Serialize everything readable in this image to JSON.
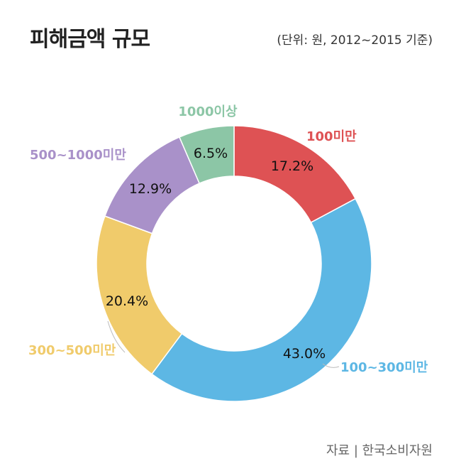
{
  "header": {
    "title": "피해금액 규모",
    "unit": "(단위: 원, 2012~2015 기준)"
  },
  "footer": {
    "source": "자료 | 한국소비자원"
  },
  "chart_data": {
    "type": "pie",
    "variant": "donut",
    "title": "피해금액 규모",
    "unit_note": "(단위: 원, 2012~2015 기준)",
    "slices": [
      {
        "label": "100미만",
        "value": 17.2,
        "display": "17.2%",
        "color": "#de5254"
      },
      {
        "label": "100~300미만",
        "value": 43.0,
        "display": "43.0%",
        "color": "#5db7e4"
      },
      {
        "label": "300~500미만",
        "value": 20.4,
        "display": "20.4%",
        "color": "#f0cb6b"
      },
      {
        "label": "500~1000미만",
        "value": 12.9,
        "display": "12.9%",
        "color": "#a991c9"
      },
      {
        "label": "1000이상",
        "value": 6.5,
        "display": "6.5%",
        "color": "#8cc6a6"
      }
    ]
  }
}
